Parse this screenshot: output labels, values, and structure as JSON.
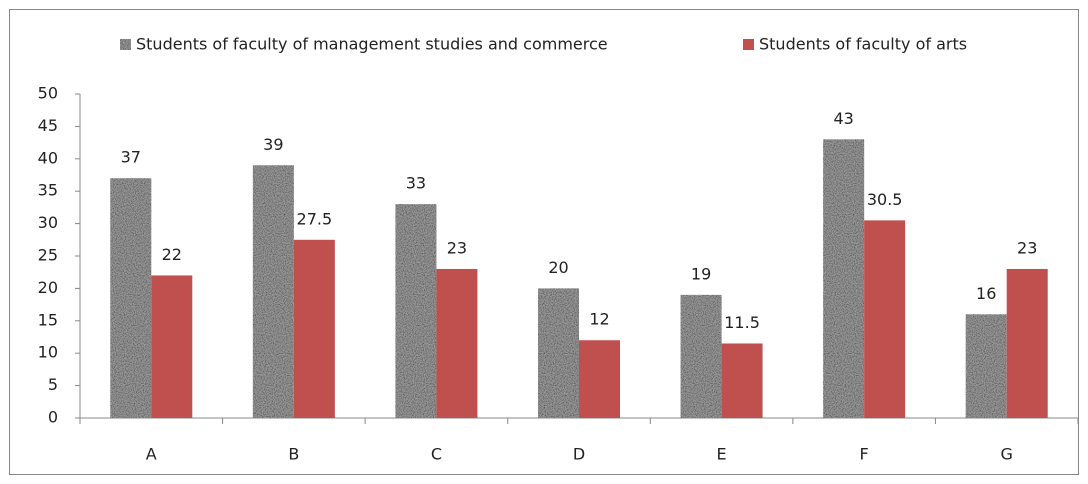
{
  "chart_data": {
    "type": "bar",
    "categories": [
      "A",
      "B",
      "C",
      "D",
      "E",
      "F",
      "G"
    ],
    "series": [
      {
        "name": "Students of faculty of management studies and commerce",
        "color": "#9a9a9a",
        "values": [
          37,
          39,
          33,
          20,
          19,
          43,
          16
        ]
      },
      {
        "name": "Students of faculty of arts",
        "color": "#c0504d",
        "values": [
          22,
          27.5,
          23,
          12,
          11.5,
          30.5,
          23
        ]
      }
    ],
    "ylim": [
      0,
      50
    ],
    "yticks": [
      0,
      5,
      10,
      15,
      20,
      25,
      30,
      35,
      40,
      45,
      50
    ],
    "grid": false,
    "legend": "top"
  }
}
